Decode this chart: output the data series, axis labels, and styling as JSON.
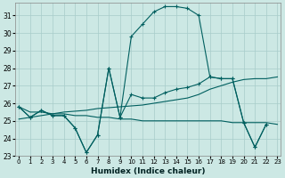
{
  "xlabel": "Humidex (Indice chaleur)",
  "bg_color": "#cce8e4",
  "grid_color": "#a8ccca",
  "line_color": "#005f5f",
  "x_hours": [
    0,
    1,
    2,
    3,
    4,
    5,
    6,
    7,
    8,
    9,
    10,
    11,
    12,
    13,
    14,
    15,
    16,
    17,
    18,
    19,
    20,
    21,
    22,
    23
  ],
  "series_main": [
    25.8,
    25.2,
    25.6,
    25.3,
    25.3,
    24.6,
    23.2,
    24.2,
    28.0,
    25.2,
    26.5,
    26.3,
    26.3,
    26.6,
    26.8,
    26.9,
    27.1,
    27.5,
    27.4,
    27.4,
    24.9,
    23.5,
    24.8,
    null
  ],
  "series_upper": [
    25.8,
    25.2,
    25.6,
    25.3,
    25.3,
    24.6,
    23.2,
    24.2,
    28.0,
    25.2,
    29.8,
    30.5,
    31.2,
    31.5,
    31.5,
    31.4,
    31.0,
    27.5,
    27.4,
    27.4,
    24.9,
    23.5,
    24.8,
    null
  ],
  "series_trend_up": [
    25.1,
    25.2,
    25.3,
    25.4,
    25.5,
    25.55,
    25.6,
    25.7,
    25.75,
    25.8,
    25.85,
    25.9,
    26.0,
    26.1,
    26.2,
    26.3,
    26.5,
    26.8,
    27.0,
    27.2,
    27.35,
    27.4,
    27.4,
    27.5
  ],
  "series_flat": [
    25.8,
    25.5,
    25.5,
    25.4,
    25.4,
    25.3,
    25.3,
    25.2,
    25.2,
    25.1,
    25.1,
    25.0,
    25.0,
    25.0,
    25.0,
    25.0,
    25.0,
    25.0,
    25.0,
    24.9,
    24.9,
    24.9,
    24.9,
    24.8
  ],
  "ylim": [
    23,
    31.7
  ],
  "yticks": [
    23,
    24,
    25,
    26,
    27,
    28,
    29,
    30,
    31
  ],
  "figsize": [
    3.2,
    2.0
  ],
  "dpi": 100
}
